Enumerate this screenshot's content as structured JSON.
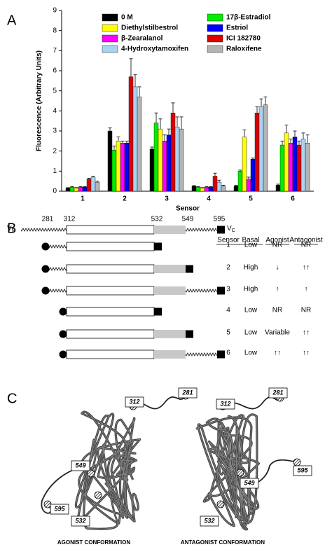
{
  "panel_labels": [
    "A",
    "B",
    "C"
  ],
  "chart_data": {
    "type": "bar",
    "xlabel": "Sensor",
    "ylabel": "Fluorescence (Arbitrary Units)",
    "categories": [
      "1",
      "2",
      "3",
      "4",
      "5",
      "6"
    ],
    "ylim": [
      0,
      9
    ],
    "yticks": [
      0,
      1,
      2,
      3,
      4,
      5,
      6,
      7,
      8,
      9
    ],
    "legend": "top",
    "legend_columns": 2,
    "series": [
      {
        "name": "0 M",
        "color": "#000000",
        "values": [
          0.15,
          3.0,
          2.1,
          0.25,
          0.25,
          0.3
        ],
        "errors": [
          0.03,
          0.15,
          0.1,
          0.03,
          0.05,
          0.05
        ]
      },
      {
        "name": "Diethylstilbestrol",
        "color": "#ffff00",
        "values": [
          0.15,
          2.5,
          3.1,
          0.15,
          2.7,
          2.9
        ],
        "errors": [
          0.03,
          0.2,
          0.5,
          0.03,
          0.35,
          0.4
        ]
      },
      {
        "name": "β-Zearalanol",
        "color": "#ff00ff",
        "values": [
          0.2,
          2.4,
          2.5,
          0.2,
          0.6,
          2.4
        ],
        "errors": [
          0.03,
          0.1,
          0.3,
          0.03,
          0.1,
          0.2
        ]
      },
      {
        "name": "4-Hydroxytamoxifen",
        "color": "#a8d4f2",
        "values": [
          0.7,
          5.2,
          3.2,
          0.45,
          4.2,
          2.6
        ],
        "errors": [
          0.05,
          0.6,
          0.5,
          0.1,
          0.4,
          0.3
        ]
      },
      {
        "name": "17β-Estradiol",
        "color": "#00ee00",
        "values": [
          0.2,
          2.05,
          3.4,
          0.2,
          1.0,
          2.3
        ],
        "errors": [
          0.03,
          0.2,
          0.5,
          0.03,
          0.05,
          0.2
        ]
      },
      {
        "name": "Estriol",
        "color": "#0000ff",
        "values": [
          0.2,
          2.4,
          2.8,
          0.2,
          1.6,
          2.7
        ],
        "errors": [
          0.03,
          0.1,
          0.3,
          0.03,
          0.05,
          0.3
        ]
      },
      {
        "name": "ICI 182780",
        "color": "#dd0000",
        "values": [
          0.6,
          5.7,
          3.9,
          0.75,
          3.9,
          2.3
        ],
        "errors": [
          0.05,
          0.9,
          0.5,
          0.15,
          0.3,
          0.2
        ]
      },
      {
        "name": "Raloxifene",
        "color": "#b4b4b4",
        "values": [
          0.45,
          4.7,
          3.1,
          0.25,
          4.3,
          2.4
        ],
        "errors": [
          0.05,
          0.5,
          0.6,
          0.05,
          0.4,
          0.4
        ]
      }
    ]
  },
  "diagram": {
    "positions": [
      "281",
      "312",
      "532",
      "549",
      "595"
    ],
    "vn": {
      "base": "V",
      "sub": "N"
    },
    "vc": {
      "base": "V",
      "sub": "C"
    },
    "table": {
      "header": [
        "Sensor",
        "Basal",
        "Agonist",
        "Antagonist"
      ],
      "rows": [
        [
          "1",
          "Low",
          "NR",
          "NR"
        ],
        [
          "2",
          "High",
          "↓",
          "↑↑"
        ],
        [
          "3",
          "High",
          "↑",
          "↑"
        ],
        [
          "4",
          "Low",
          "NR",
          "NR"
        ],
        [
          "5",
          "Low",
          "Variable",
          "↑↑"
        ],
        [
          "6",
          "Low",
          "↑↑",
          "↑↑"
        ]
      ]
    }
  },
  "structures": {
    "agonist": {
      "caption": "AGONIST CONFORMATION",
      "labels": [
        "312",
        "281",
        "549",
        "595",
        "532"
      ]
    },
    "antagonist": {
      "caption": "ANTAGONIST CONFORMATION",
      "labels": [
        "312",
        "281",
        "549",
        "595",
        "532"
      ]
    }
  }
}
